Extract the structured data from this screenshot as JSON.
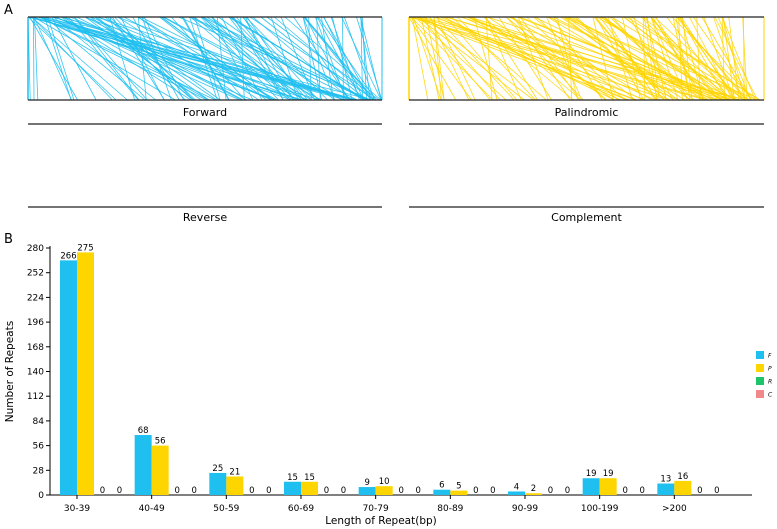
{
  "panels": {
    "a_label": "A",
    "b_label": "B"
  },
  "tracks": [
    {
      "name": "Forward",
      "color": "#1fbff0",
      "links": 140
    },
    {
      "name": "Palindromic",
      "color": "#ffd500",
      "links": 140
    },
    {
      "name": "Reverse",
      "color": "#1fbff0",
      "links": 0
    },
    {
      "name": "Complement",
      "color": "#ffd500",
      "links": 0
    }
  ],
  "chart_data": {
    "type": "bar",
    "xlabel": "Length of Repeat(bp)",
    "ylabel": "Number of Repeats",
    "ylim": [
      0,
      280
    ],
    "yticks": [
      0,
      28,
      56,
      84,
      112,
      140,
      168,
      196,
      224,
      252,
      280
    ],
    "categories": [
      "30-39",
      "40-49",
      "50-59",
      "60-69",
      "70-79",
      "80-89",
      "90-99",
      "100-199",
      ">200"
    ],
    "series": [
      {
        "name": "F",
        "color": "#1fbff0",
        "values": [
          266,
          68,
          25,
          15,
          9,
          6,
          4,
          19,
          13
        ]
      },
      {
        "name": "P",
        "color": "#ffd500",
        "values": [
          275,
          56,
          21,
          15,
          10,
          5,
          2,
          19,
          16
        ]
      },
      {
        "name": "R",
        "color": "#1ec46a",
        "values": [
          0,
          0,
          0,
          0,
          0,
          0,
          0,
          0,
          0
        ]
      },
      {
        "name": "C",
        "color": "#f08a8a",
        "values": [
          0,
          0,
          0,
          0,
          0,
          0,
          0,
          0,
          0
        ]
      }
    ],
    "legend_position": "right"
  }
}
